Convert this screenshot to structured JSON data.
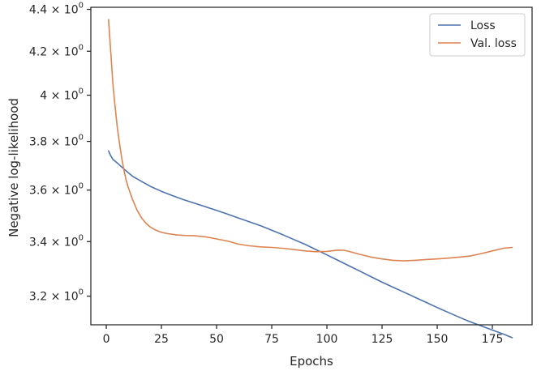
{
  "chart_data": {
    "type": "line",
    "title": "",
    "xlabel": "Epochs",
    "ylabel": "Negative log-likelihood",
    "yscale": "log",
    "xlim": [
      -7,
      193
    ],
    "ylim": [
      3.1,
      4.41
    ],
    "grid": false,
    "legend_position": "top-right",
    "x_ticks": [
      0,
      25,
      50,
      75,
      100,
      125,
      150,
      175
    ],
    "x_tick_labels": [
      "0",
      "25",
      "50",
      "75",
      "100",
      "125",
      "150",
      "175"
    ],
    "y_ticks": [
      {
        "value": 3.2,
        "mantissa": "3.2",
        "times": "×",
        "base": "10",
        "exp": "0"
      },
      {
        "value": 3.4,
        "mantissa": "3.4",
        "times": "×",
        "base": "10",
        "exp": "0"
      },
      {
        "value": 3.6,
        "mantissa": "3.6",
        "times": "×",
        "base": "10",
        "exp": "0"
      },
      {
        "value": 3.8,
        "mantissa": "3.8",
        "times": "×",
        "base": "10",
        "exp": "0"
      },
      {
        "value": 4.0,
        "mantissa": "4",
        "times": "×",
        "base": "10",
        "exp": "0"
      },
      {
        "value": 4.2,
        "mantissa": "4.2",
        "times": "×",
        "base": "10",
        "exp": "0"
      },
      {
        "value": 4.4,
        "mantissa": "4.4",
        "times": "×",
        "base": "10",
        "exp": "0"
      }
    ],
    "series": [
      {
        "name": "Loss",
        "color": "#4c72b0",
        "x": [
          1,
          2,
          3,
          5,
          8,
          10,
          12,
          15,
          20,
          25,
          30,
          35,
          40,
          45,
          50,
          55,
          60,
          65,
          70,
          75,
          80,
          85,
          90,
          95,
          100,
          105,
          110,
          115,
          120,
          125,
          130,
          135,
          140,
          145,
          150,
          155,
          160,
          165,
          170,
          175,
          180,
          184
        ],
        "y": [
          3.76,
          3.74,
          3.725,
          3.71,
          3.685,
          3.67,
          3.655,
          3.64,
          3.615,
          3.595,
          3.578,
          3.562,
          3.548,
          3.534,
          3.52,
          3.505,
          3.49,
          3.475,
          3.46,
          3.443,
          3.426,
          3.408,
          3.39,
          3.37,
          3.35,
          3.33,
          3.31,
          3.29,
          3.27,
          3.25,
          3.232,
          3.214,
          3.196,
          3.178,
          3.16,
          3.143,
          3.126,
          3.11,
          3.096,
          3.082,
          3.068,
          3.056
        ]
      },
      {
        "name": "Val. loss",
        "color": "#dd8452",
        "x": [
          1,
          2,
          3,
          4,
          5,
          6,
          7,
          8,
          9,
          10,
          12,
          14,
          16,
          18,
          20,
          22,
          25,
          28,
          32,
          36,
          40,
          45,
          50,
          55,
          60,
          65,
          70,
          75,
          80,
          85,
          90,
          95,
          100,
          105,
          108,
          110,
          115,
          120,
          125,
          130,
          135,
          140,
          145,
          150,
          155,
          160,
          165,
          170,
          175,
          180,
          184
        ],
        "y": [
          4.35,
          4.2,
          4.05,
          3.95,
          3.86,
          3.79,
          3.73,
          3.68,
          3.64,
          3.61,
          3.56,
          3.52,
          3.49,
          3.47,
          3.455,
          3.445,
          3.435,
          3.43,
          3.425,
          3.423,
          3.422,
          3.418,
          3.41,
          3.402,
          3.39,
          3.384,
          3.38,
          3.378,
          3.375,
          3.37,
          3.365,
          3.362,
          3.363,
          3.368,
          3.367,
          3.363,
          3.352,
          3.342,
          3.335,
          3.33,
          3.328,
          3.33,
          3.333,
          3.335,
          3.338,
          3.342,
          3.346,
          3.355,
          3.365,
          3.375,
          3.378
        ]
      }
    ]
  }
}
